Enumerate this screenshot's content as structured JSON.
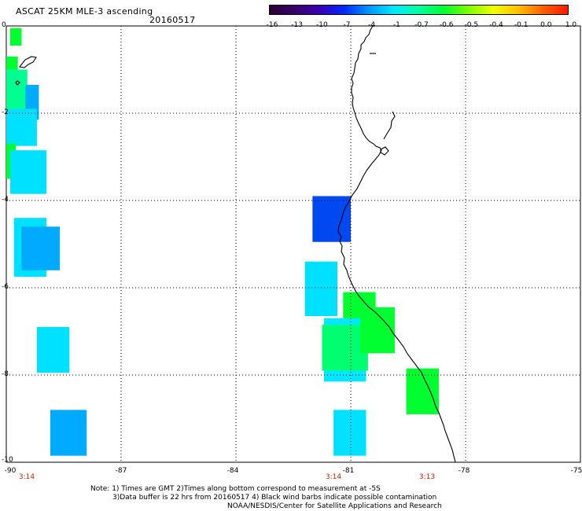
{
  "header": {
    "title": "ASCAT 25KM MLE-3 ascending",
    "date": "20160517"
  },
  "colorbar": {
    "tick_labels": [
      "-16",
      "-13",
      "-10",
      "-7",
      "-4",
      "-1",
      "-0.7",
      "-0.6",
      "-0.5",
      "-0.4",
      "-0.1",
      "0.0",
      "1.0"
    ],
    "colors": [
      "#2a0030",
      "#3a006a",
      "#3a00b5",
      "#0028ff",
      "#0096ff",
      "#00e8ff",
      "#00ffa0",
      "#00ff30",
      "#7cff00",
      "#f0ff00",
      "#ffc000",
      "#ff6000",
      "#ff1a00"
    ]
  },
  "axes": {
    "y_labels": [
      "0",
      "-2",
      "-4",
      "-6",
      "-8",
      "-10"
    ],
    "x_labels": [
      "-90",
      "-87",
      "-84",
      "-81",
      "-78",
      "-75"
    ],
    "time_labels": [
      {
        "text": "3:14",
        "lon": -90
      },
      {
        "text": "3:14",
        "lon": -81
      },
      {
        "text": "3:13",
        "lon": -79
      }
    ]
  },
  "footer": {
    "note1": "Note: 1) Times are GMT 2)Times along bottom correspond to measurement at -5S",
    "note2": "3)Data buffer is 22 hrs from 20160517 4) Black wind barbs indicate possible contamination",
    "credit": "NOAA/NESDIS/Center for Satellite Applications and Research"
  },
  "map": {
    "lon_range": [
      -90,
      -75
    ],
    "lat_range": [
      -10,
      0
    ],
    "grid": "dotted",
    "cells": [
      {
        "lon": -89.9,
        "lat": -0.05,
        "w": 0.3,
        "h": 0.4,
        "color": "#00ff30"
      },
      {
        "lon": -90.0,
        "lat": -0.7,
        "w": 0.3,
        "h": 0.9,
        "color": "#00ff30"
      },
      {
        "lon": -90.0,
        "lat": -1.0,
        "w": 0.55,
        "h": 1.1,
        "color": "#00ff90"
      },
      {
        "lon": -89.5,
        "lat": -1.35,
        "w": 0.35,
        "h": 0.8,
        "color": "#00aaff"
      },
      {
        "lon": -90.0,
        "lat": -1.9,
        "w": 0.8,
        "h": 0.85,
        "color": "#00e0ff"
      },
      {
        "lon": -90.0,
        "lat": -2.7,
        "w": 0.25,
        "h": 0.8,
        "color": "#00ff30"
      },
      {
        "lon": -89.9,
        "lat": -2.85,
        "w": 0.95,
        "h": 1.0,
        "color": "#00e0ff"
      },
      {
        "lon": -89.8,
        "lat": -4.4,
        "w": 0.85,
        "h": 1.35,
        "color": "#00e0ff"
      },
      {
        "lon": -89.6,
        "lat": -4.6,
        "w": 1.0,
        "h": 1.0,
        "color": "#00aaff"
      },
      {
        "lon": -89.2,
        "lat": -6.9,
        "w": 0.85,
        "h": 1.05,
        "color": "#00e0ff"
      },
      {
        "lon": -88.85,
        "lat": -8.8,
        "w": 0.95,
        "h": 1.05,
        "color": "#00aaff"
      },
      {
        "lon": -82.0,
        "lat": -3.9,
        "w": 1.0,
        "h": 1.05,
        "color": "#0048f0"
      },
      {
        "lon": -82.2,
        "lat": -5.4,
        "w": 0.85,
        "h": 1.25,
        "color": "#00e0ff"
      },
      {
        "lon": -81.2,
        "lat": -6.1,
        "w": 0.85,
        "h": 1.05,
        "color": "#00ff30"
      },
      {
        "lon": -81.7,
        "lat": -6.7,
        "w": 1.1,
        "h": 1.45,
        "color": "#00e8ff"
      },
      {
        "lon": -81.75,
        "lat": -6.85,
        "w": 1.2,
        "h": 1.05,
        "color": "#00ff70"
      },
      {
        "lon": -80.75,
        "lat": -6.45,
        "w": 0.9,
        "h": 1.05,
        "color": "#00ff30"
      },
      {
        "lon": -79.55,
        "lat": -7.85,
        "w": 0.85,
        "h": 1.05,
        "color": "#00ff30"
      },
      {
        "lon": -81.45,
        "lat": -8.8,
        "w": 0.85,
        "h": 1.05,
        "color": "#00e0ff"
      }
    ]
  }
}
